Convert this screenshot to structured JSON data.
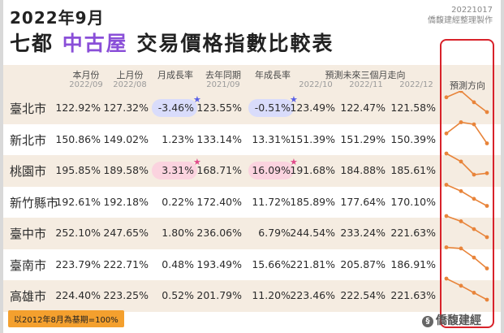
{
  "title_line1": "2022年9月",
  "title_line2": {
    "before": "七都",
    "highlight": "中古屋",
    "after": "交易價格指數比較表"
  },
  "stamp": {
    "date": "20221017",
    "maker": "僑馥建經整理製作"
  },
  "headers": [
    {
      "label": "本月份",
      "sub": "2022/09"
    },
    {
      "label": "上月份",
      "sub": "2022/08"
    },
    {
      "label": "月成長率",
      "sub": ""
    },
    {
      "label": "去年同期",
      "sub": "2021/09"
    },
    {
      "label": "年成長率",
      "sub": ""
    },
    {
      "label": "預測未來三個月走向",
      "sub": ""
    },
    {
      "label": "預測方向",
      "sub": ""
    }
  ],
  "forecast_months": [
    "2022/10",
    "2022/11",
    "2022/12"
  ],
  "chart_data": {
    "type": "table",
    "columns": [
      "本月份 2022/09",
      "上月份 2022/08",
      "月成長率",
      "去年同期 2021/09",
      "年成長率",
      "2022/10",
      "2022/11",
      "2022/12"
    ],
    "rows": [
      {
        "city": "臺北市",
        "cur": "122.92%",
        "prev": "127.32%",
        "mom": "-3.46%",
        "lastyear": "123.55%",
        "yoy": "-0.51%",
        "f": [
          "123.49%",
          "122.47%",
          "121.58%"
        ],
        "mom_mark": "blue",
        "yoy_mark": "blue"
      },
      {
        "city": "新北市",
        "cur": "150.86%",
        "prev": "149.02%",
        "mom": "1.23%",
        "lastyear": "133.14%",
        "yoy": "13.31%",
        "f": [
          "151.39%",
          "151.29%",
          "150.39%"
        ],
        "mom_mark": "",
        "yoy_mark": ""
      },
      {
        "city": "桃園市",
        "cur": "195.85%",
        "prev": "189.58%",
        "mom": "3.31%",
        "lastyear": "168.71%",
        "yoy": "16.09%",
        "f": [
          "191.68%",
          "184.88%",
          "185.61%"
        ],
        "mom_mark": "pink",
        "yoy_mark": "pink"
      },
      {
        "city": "新竹縣市",
        "cur": "192.61%",
        "prev": "192.18%",
        "mom": "0.22%",
        "lastyear": "172.40%",
        "yoy": "11.72%",
        "f": [
          "185.89%",
          "177.64%",
          "170.10%"
        ],
        "mom_mark": "",
        "yoy_mark": ""
      },
      {
        "city": "臺中市",
        "cur": "252.10%",
        "prev": "247.65%",
        "mom": "1.80%",
        "lastyear": "236.06%",
        "yoy": "6.79%",
        "f": [
          "244.54%",
          "233.24%",
          "221.63%"
        ],
        "mom_mark": "",
        "yoy_mark": ""
      },
      {
        "city": "臺南市",
        "cur": "223.79%",
        "prev": "222.71%",
        "mom": "0.48%",
        "lastyear": "193.49%",
        "yoy": "15.66%",
        "f": [
          "221.81%",
          "205.87%",
          "186.91%"
        ],
        "mom_mark": "",
        "yoy_mark": ""
      },
      {
        "city": "高雄市",
        "cur": "224.40%",
        "prev": "223.25%",
        "mom": "0.52%",
        "lastyear": "201.79%",
        "yoy": "11.20%",
        "f": [
          "223.46%",
          "222.54%",
          "221.63%"
        ],
        "mom_mark": "",
        "yoy_mark": ""
      }
    ],
    "trend": [
      [
        122.92,
        123.49,
        122.47,
        121.58
      ],
      [
        150.86,
        151.39,
        151.29,
        150.39
      ],
      [
        195.85,
        191.68,
        184.88,
        185.61
      ],
      [
        192.61,
        185.89,
        177.64,
        170.1
      ],
      [
        252.1,
        244.54,
        233.24,
        221.63
      ],
      [
        223.79,
        221.81,
        205.87,
        186.91
      ],
      [
        224.4,
        223.46,
        222.54,
        221.63
      ]
    ]
  },
  "colors": {
    "trend_line": "#e8843a",
    "band": "#f5ece1",
    "highlight_blue": "#d9dcfb",
    "highlight_pink": "#fbd3df",
    "box": "#d8222a"
  },
  "footer": {
    "base_note": "以2012年8月為基期=100%",
    "logo": "僑馥建經",
    "logo_icon": "logo-mark-icon"
  }
}
